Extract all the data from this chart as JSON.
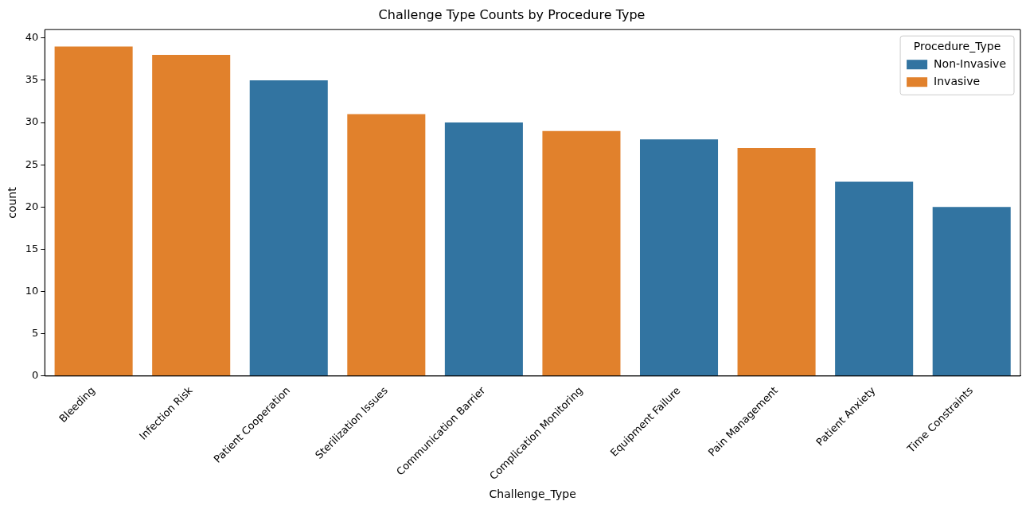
{
  "chart_data": {
    "type": "bar",
    "title": "Challenge Type Counts by Procedure Type",
    "xlabel": "Challenge_Type",
    "ylabel": "count",
    "legend_title": "Procedure_Type",
    "legend": "top right",
    "stacked": true,
    "grid": false,
    "categories": [
      "Bleeding",
      "Infection Risk",
      "Patient Cooperation",
      "Sterilization Issues",
      "Communication Barrier",
      "Complication Monitoring",
      "Equipment Failure",
      "Pain Management",
      "Patient Anxiety",
      "Time Constraints"
    ],
    "series": [
      {
        "name": "Non-Invasive",
        "color": "#3274a1",
        "values": [
          null,
          null,
          35,
          null,
          30,
          null,
          28,
          null,
          23,
          20
        ]
      },
      {
        "name": "Invasive",
        "color": "#e1812c",
        "values": [
          39,
          38,
          null,
          31,
          null,
          29,
          null,
          27,
          null,
          null
        ]
      }
    ],
    "ylim": [
      0,
      41
    ],
    "yticks": [
      0,
      5,
      10,
      15,
      20,
      25,
      30,
      35,
      40
    ]
  }
}
